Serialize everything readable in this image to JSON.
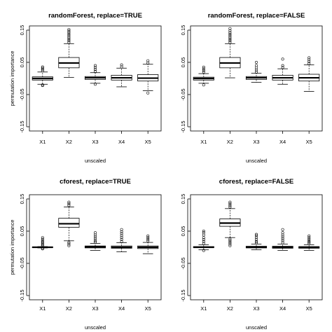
{
  "chart_data": [
    {
      "type": "boxplot",
      "title": "randomForest, replace=TRUE",
      "xlabel": "unscaled",
      "ylabel": "permutation importance",
      "ylim": [
        -0.15,
        0.15
      ],
      "yticks": [
        "-0.15",
        "-0.05",
        "0.05",
        "0.15"
      ],
      "categories": [
        "X1",
        "X2",
        "X3",
        "X4",
        "X5"
      ],
      "boxes": [
        {
          "q1": -0.005,
          "median": 0.0,
          "q3": 0.005,
          "wlo": -0.018,
          "whi": 0.02,
          "out_lo": [
            -0.022,
            -0.02
          ],
          "out_hi": [
            0.024,
            0.028,
            0.032,
            0.036
          ]
        },
        {
          "q1": 0.033,
          "median": 0.048,
          "q3": 0.065,
          "wlo": 0.003,
          "whi": 0.108,
          "out_lo": [],
          "out_hi": [
            0.112,
            0.117,
            0.122,
            0.127,
            0.132,
            0.137,
            0.142,
            0.147,
            0.152
          ]
        },
        {
          "q1": -0.003,
          "median": 0.002,
          "q3": 0.006,
          "wlo": -0.015,
          "whi": 0.018,
          "out_lo": [
            -0.018
          ],
          "out_hi": [
            0.022,
            0.028,
            0.034,
            0.04
          ]
        },
        {
          "q1": -0.005,
          "median": 0.002,
          "q3": 0.01,
          "wlo": -0.026,
          "whi": 0.032,
          "out_lo": [],
          "out_hi": [
            0.036,
            0.042
          ]
        },
        {
          "q1": -0.008,
          "median": 0.001,
          "q3": 0.012,
          "wlo": -0.038,
          "whi": 0.044,
          "out_lo": [
            -0.045
          ],
          "out_hi": [
            0.048,
            0.055
          ]
        }
      ]
    },
    {
      "type": "boxplot",
      "title": "randomForest, replace=FALSE",
      "xlabel": "unscaled",
      "ylabel": "",
      "ylim": [
        -0.15,
        0.15
      ],
      "yticks": [
        "-0.15",
        "-0.05",
        "0.05",
        "0.15"
      ],
      "categories": [
        "X1",
        "X2",
        "X3",
        "X4",
        "X5"
      ],
      "boxes": [
        {
          "q1": -0.005,
          "median": 0.0,
          "q3": 0.004,
          "wlo": -0.015,
          "whi": 0.015,
          "out_lo": [
            -0.02
          ],
          "out_hi": [
            0.02,
            0.025,
            0.03,
            0.035
          ]
        },
        {
          "q1": 0.033,
          "median": 0.048,
          "q3": 0.065,
          "wlo": 0.002,
          "whi": 0.108,
          "out_lo": [],
          "out_hi": [
            0.112,
            0.117,
            0.122,
            0.127,
            0.132,
            0.137,
            0.142,
            0.148,
            0.155
          ]
        },
        {
          "q1": -0.003,
          "median": 0.002,
          "q3": 0.006,
          "wlo": -0.012,
          "whi": 0.016,
          "out_lo": [],
          "out_hi": [
            0.02,
            0.026,
            0.033,
            0.04,
            0.05
          ]
        },
        {
          "q1": -0.005,
          "median": 0.002,
          "q3": 0.01,
          "wlo": -0.018,
          "whi": 0.03,
          "out_lo": [],
          "out_hi": [
            0.034,
            0.04,
            0.06
          ]
        },
        {
          "q1": -0.008,
          "median": 0.002,
          "q3": 0.013,
          "wlo": -0.04,
          "whi": 0.042,
          "out_lo": [],
          "out_hi": [
            0.046,
            0.052,
            0.058,
            0.064
          ]
        }
      ]
    },
    {
      "type": "boxplot",
      "title": "cforest, replace=TRUE",
      "xlabel": "unscaled",
      "ylabel": "permutation importance",
      "ylim": [
        -0.15,
        0.15
      ],
      "yticks": [
        "-0.15",
        "-0.05",
        "0.05",
        "0.15"
      ],
      "categories": [
        "X1",
        "X2",
        "X3",
        "X4",
        "X5"
      ],
      "boxes": [
        {
          "q1": -0.001,
          "median": 0.0,
          "q3": 0.001,
          "wlo": -0.002,
          "whi": 0.002,
          "out_lo": [
            -0.003,
            -0.005
          ],
          "out_hi": [
            0.004,
            0.008,
            0.012,
            0.016,
            0.02,
            0.025,
            0.03
          ]
        },
        {
          "q1": 0.062,
          "median": 0.073,
          "q3": 0.09,
          "wlo": 0.02,
          "whi": 0.125,
          "out_lo": [
            0.015,
            0.01,
            0.005
          ],
          "out_hi": [
            0.13,
            0.135,
            0.14
          ]
        },
        {
          "q1": -0.002,
          "median": 0.001,
          "q3": 0.004,
          "wlo": -0.01,
          "whi": 0.012,
          "out_lo": [],
          "out_hi": [
            0.016,
            0.02,
            0.026,
            0.032,
            0.038,
            0.045
          ]
        },
        {
          "q1": -0.003,
          "median": 0.0,
          "q3": 0.004,
          "wlo": -0.014,
          "whi": 0.014,
          "out_lo": [],
          "out_hi": [
            0.018,
            0.024,
            0.03,
            0.036,
            0.042,
            0.048,
            0.055
          ]
        },
        {
          "q1": -0.004,
          "median": 0.0,
          "q3": 0.004,
          "wlo": -0.02,
          "whi": 0.015,
          "out_lo": [],
          "out_hi": [
            0.02,
            0.025,
            0.03,
            0.035
          ]
        }
      ]
    },
    {
      "type": "boxplot",
      "title": "cforest, replace=FALSE",
      "xlabel": "unscaled",
      "ylabel": "",
      "ylim": [
        -0.15,
        0.15
      ],
      "yticks": [
        "-0.15",
        "-0.05",
        "0.05",
        "0.15"
      ],
      "categories": [
        "X1",
        "X2",
        "X3",
        "X4",
        "X5"
      ],
      "boxes": [
        {
          "q1": -0.001,
          "median": 0.0,
          "q3": 0.002,
          "wlo": -0.008,
          "whi": 0.008,
          "out_lo": [
            -0.01
          ],
          "out_hi": [
            0.012,
            0.018,
            0.024,
            0.03,
            0.038,
            0.045,
            0.05
          ]
        },
        {
          "q1": 0.065,
          "median": 0.075,
          "q3": 0.088,
          "wlo": 0.03,
          "whi": 0.12,
          "out_lo": [
            0.025,
            0.02,
            0.015,
            0.01,
            0.005
          ],
          "out_hi": [
            0.125,
            0.13,
            0.135,
            0.14
          ]
        },
        {
          "q1": -0.002,
          "median": 0.0,
          "q3": 0.003,
          "wlo": -0.008,
          "whi": 0.01,
          "out_lo": [],
          "out_hi": [
            0.014,
            0.018,
            0.024,
            0.03,
            0.036,
            0.04
          ]
        },
        {
          "q1": -0.003,
          "median": 0.0,
          "q3": 0.003,
          "wlo": -0.01,
          "whi": 0.01,
          "out_lo": [],
          "out_hi": [
            0.014,
            0.02,
            0.026,
            0.032,
            0.038,
            0.045,
            0.055
          ]
        },
        {
          "q1": -0.003,
          "median": 0.0,
          "q3": 0.002,
          "wlo": -0.01,
          "whi": 0.008,
          "out_lo": [],
          "out_hi": [
            0.012,
            0.016,
            0.02,
            0.025,
            0.03,
            0.035
          ]
        }
      ]
    }
  ]
}
